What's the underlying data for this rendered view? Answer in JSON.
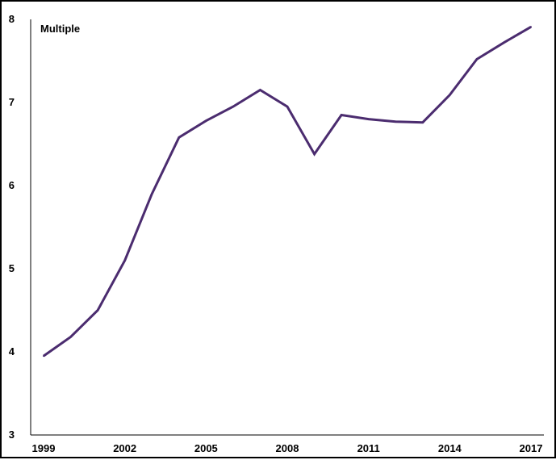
{
  "chart_data": {
    "type": "line",
    "ylabel": "Multiple",
    "ylim": [
      3,
      8
    ],
    "y_ticks": [
      "3",
      "4",
      "5",
      "6",
      "7",
      "8"
    ],
    "x_ticks": [
      "1999",
      "2002",
      "2005",
      "2008",
      "2011",
      "2014",
      "2017"
    ],
    "grid": false,
    "line_color": "#4B2C6F",
    "series": [
      {
        "x": [
          1999,
          2000,
          2001,
          2002,
          2003,
          2004,
          2005,
          2006,
          2007,
          2008,
          2009,
          2010,
          2011,
          2012,
          2013,
          2014,
          2015,
          2016,
          2017
        ],
        "values": [
          3.95,
          4.18,
          4.5,
          5.1,
          5.9,
          6.58,
          6.78,
          6.95,
          7.15,
          6.95,
          6.38,
          6.85,
          6.8,
          6.77,
          6.76,
          7.09,
          7.52,
          7.72,
          7.91
        ]
      }
    ]
  }
}
